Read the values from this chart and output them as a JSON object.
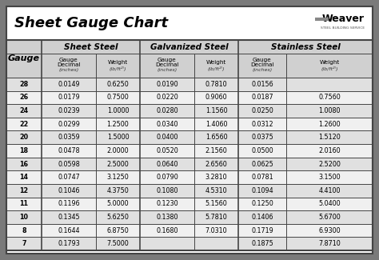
{
  "title": "Sheet Gauge Chart",
  "bg_outer": "#7a7a7a",
  "bg_inner": "#ffffff",
  "header_bg": "#d0d0d0",
  "row_bg_alt": "#e0e0e0",
  "row_bg_norm": "#f0f0f0",
  "border_color": "#444444",
  "gauges": [
    28,
    26,
    24,
    22,
    20,
    18,
    16,
    14,
    12,
    11,
    10,
    8,
    7
  ],
  "sheet_steel_decimal": [
    "0.0149",
    "0.0179",
    "0.0239",
    "0.0299",
    "0.0359",
    "0.0478",
    "0.0598",
    "0.0747",
    "0.1046",
    "0.1196",
    "0.1345",
    "0.1644",
    "0.1793"
  ],
  "sheet_steel_weight": [
    "0.6250",
    "0.7500",
    "1.0000",
    "1.2500",
    "1.5000",
    "2.0000",
    "2.5000",
    "3.1250",
    "4.3750",
    "5.0000",
    "5.6250",
    "6.8750",
    "7.5000"
  ],
  "galvanized_decimal": [
    "0.0190",
    "0.0220",
    "0.0280",
    "0.0340",
    "0.0400",
    "0.0520",
    "0.0640",
    "0.0790",
    "0.1080",
    "0.1230",
    "0.1380",
    "0.1680",
    ""
  ],
  "galvanized_weight": [
    "0.7810",
    "0.9060",
    "1.1560",
    "1.4060",
    "1.6560",
    "2.1560",
    "2.6560",
    "3.2810",
    "4.5310",
    "5.1560",
    "5.7810",
    "7.0310",
    ""
  ],
  "stainless_decimal": [
    "0.0156",
    "0.0187",
    "0.0250",
    "0.0312",
    "0.0375",
    "0.0500",
    "0.0625",
    "0.0781",
    "0.1094",
    "0.1250",
    "0.1406",
    "0.1719",
    "0.1875"
  ],
  "stainless_weight": [
    "",
    "0.7560",
    "1.0080",
    "1.2600",
    "1.5120",
    "2.0160",
    "2.5200",
    "3.1500",
    "4.4100",
    "5.0400",
    "5.6700",
    "6.9300",
    "7.8710"
  ]
}
